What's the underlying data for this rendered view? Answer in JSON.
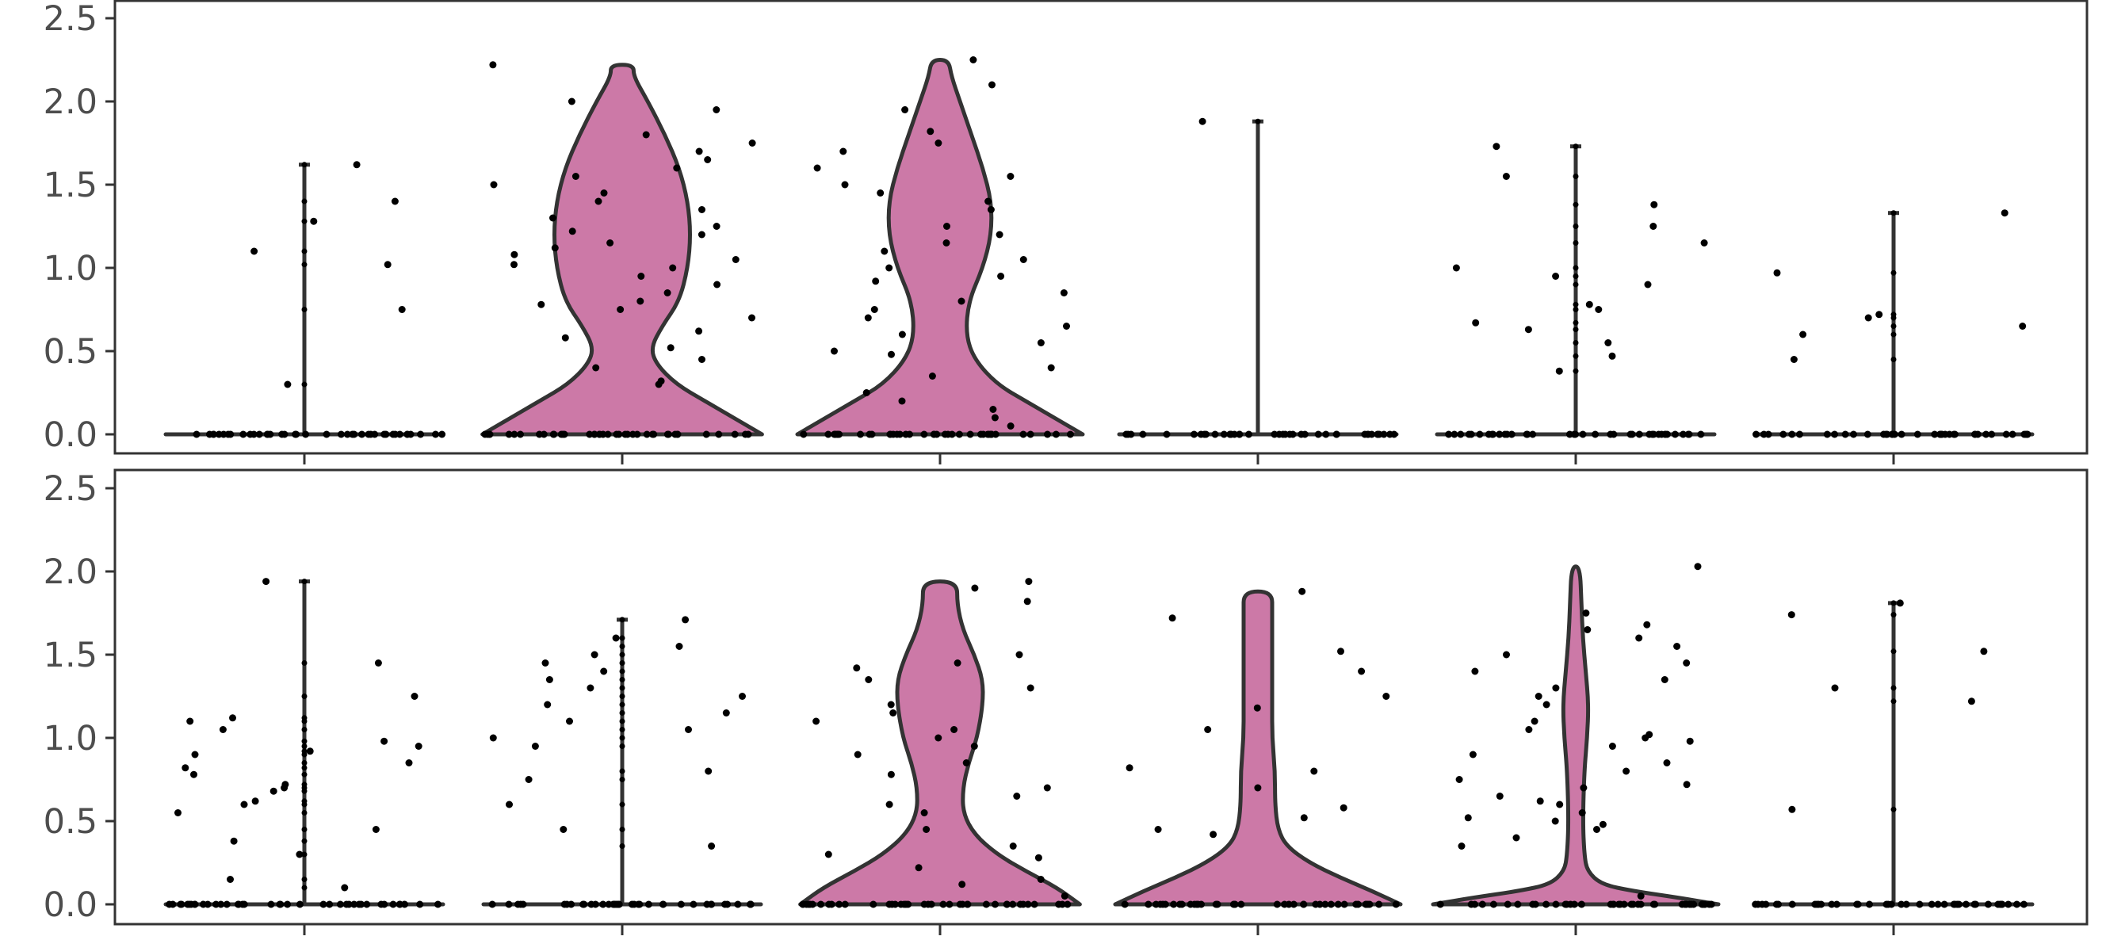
{
  "chart_data": {
    "type": "violin",
    "groups": 6,
    "ylim": [
      -0.1,
      2.6
    ],
    "yticks": [
      "0.0",
      "0.5",
      "1.0",
      "1.5",
      "2.0",
      "2.5"
    ],
    "ytick_values": [
      0,
      0.5,
      1.0,
      1.5,
      2.0,
      2.5
    ],
    "colors": {
      "violin_fill": "#cc79a7",
      "violin_stroke": "#333333",
      "point": "#000000",
      "frame": "#333333",
      "tick_label": "#4d4d4d"
    },
    "panels": [
      {
        "violins": [
          {
            "group": 1,
            "max": 1.62,
            "shape": "line",
            "points": [
              0.3,
              0.75,
              1.02,
              1.1,
              1.28,
              1.4,
              1.62
            ]
          },
          {
            "group": 2,
            "max": 2.22,
            "shape": "full",
            "profile": [
              [
                0,
                0.98
              ],
              [
                0.1,
                0.78
              ],
              [
                0.2,
                0.58
              ],
              [
                0.3,
                0.38
              ],
              [
                0.42,
                0.24
              ],
              [
                0.52,
                0.2
              ],
              [
                0.65,
                0.28
              ],
              [
                0.8,
                0.4
              ],
              [
                1.0,
                0.46
              ],
              [
                1.2,
                0.48
              ],
              [
                1.4,
                0.46
              ],
              [
                1.6,
                0.4
              ],
              [
                1.8,
                0.3
              ],
              [
                2.0,
                0.18
              ],
              [
                2.15,
                0.08
              ],
              [
                2.22,
                0.08
              ]
            ],
            "points": [
              0.3,
              0.32,
              0.4,
              0.45,
              0.52,
              0.58,
              0.62,
              0.7,
              0.75,
              0.78,
              0.8,
              0.85,
              0.9,
              0.95,
              1.0,
              1.02,
              1.05,
              1.08,
              1.12,
              1.15,
              1.2,
              1.22,
              1.25,
              1.3,
              1.35,
              1.4,
              1.45,
              1.5,
              1.55,
              1.6,
              1.65,
              1.7,
              1.75,
              1.8,
              1.95,
              2.0,
              2.22
            ]
          },
          {
            "group": 3,
            "max": 2.25,
            "shape": "full",
            "profile": [
              [
                0,
                1.0
              ],
              [
                0.1,
                0.8
              ],
              [
                0.2,
                0.6
              ],
              [
                0.3,
                0.4
              ],
              [
                0.45,
                0.24
              ],
              [
                0.6,
                0.18
              ],
              [
                0.8,
                0.2
              ],
              [
                1.0,
                0.3
              ],
              [
                1.2,
                0.36
              ],
              [
                1.4,
                0.36
              ],
              [
                1.6,
                0.3
              ],
              [
                1.8,
                0.22
              ],
              [
                2.0,
                0.14
              ],
              [
                2.15,
                0.08
              ],
              [
                2.25,
                0.06
              ]
            ],
            "points": [
              0.05,
              0.1,
              0.15,
              0.2,
              0.25,
              0.35,
              0.4,
              0.48,
              0.5,
              0.55,
              0.6,
              0.65,
              0.7,
              0.75,
              0.8,
              0.85,
              0.92,
              0.95,
              1.0,
              1.05,
              1.1,
              1.15,
              1.2,
              1.25,
              1.35,
              1.4,
              1.45,
              1.5,
              1.55,
              1.6,
              1.7,
              1.75,
              1.82,
              1.95,
              2.1,
              2.25
            ]
          },
          {
            "group": 4,
            "max": 1.88,
            "shape": "line",
            "points": [
              1.88
            ]
          },
          {
            "group": 5,
            "max": 1.73,
            "shape": "line",
            "points": [
              0.38,
              0.47,
              0.55,
              0.63,
              0.67,
              0.75,
              0.78,
              0.9,
              0.95,
              1.0,
              1.15,
              1.25,
              1.38,
              1.55,
              1.73
            ]
          },
          {
            "group": 6,
            "max": 1.33,
            "shape": "line",
            "points": [
              0.45,
              0.6,
              0.65,
              0.7,
              0.72,
              0.97,
              1.33
            ]
          }
        ]
      },
      {
        "violins": [
          {
            "group": 1,
            "max": 1.94,
            "shape": "line",
            "points": [
              0.1,
              0.15,
              0.3,
              0.38,
              0.45,
              0.55,
              0.6,
              0.62,
              0.68,
              0.7,
              0.72,
              0.78,
              0.82,
              0.85,
              0.9,
              0.92,
              0.95,
              0.98,
              1.05,
              1.1,
              1.12,
              1.25,
              1.45,
              1.94
            ]
          },
          {
            "group": 2,
            "max": 1.71,
            "shape": "line",
            "points": [
              0.35,
              0.45,
              0.6,
              0.75,
              0.8,
              0.95,
              1.0,
              1.05,
              1.1,
              1.15,
              1.2,
              1.25,
              1.3,
              1.35,
              1.4,
              1.45,
              1.5,
              1.55,
              1.6,
              1.71
            ]
          },
          {
            "group": 3,
            "max": 1.94,
            "shape": "full",
            "profile": [
              [
                0,
                0.98
              ],
              [
                0.1,
                0.82
              ],
              [
                0.2,
                0.6
              ],
              [
                0.3,
                0.4
              ],
              [
                0.42,
                0.24
              ],
              [
                0.55,
                0.16
              ],
              [
                0.7,
                0.16
              ],
              [
                0.85,
                0.2
              ],
              [
                1.0,
                0.26
              ],
              [
                1.2,
                0.3
              ],
              [
                1.35,
                0.3
              ],
              [
                1.5,
                0.24
              ],
              [
                1.65,
                0.16
              ],
              [
                1.8,
                0.12
              ],
              [
                1.94,
                0.12
              ]
            ],
            "points": [
              0.05,
              0.12,
              0.15,
              0.22,
              0.28,
              0.3,
              0.35,
              0.45,
              0.55,
              0.6,
              0.65,
              0.7,
              0.78,
              0.85,
              0.9,
              0.95,
              1.0,
              1.05,
              1.1,
              1.15,
              1.2,
              1.3,
              1.35,
              1.42,
              1.45,
              1.5,
              1.82,
              1.9,
              1.94
            ]
          },
          {
            "group": 4,
            "max": 1.88,
            "shape": "full",
            "profile": [
              [
                0,
                1.0
              ],
              [
                0.08,
                0.8
              ],
              [
                0.16,
                0.58
              ],
              [
                0.25,
                0.36
              ],
              [
                0.35,
                0.2
              ],
              [
                0.45,
                0.14
              ],
              [
                0.6,
                0.12
              ],
              [
                0.8,
                0.12
              ],
              [
                1.0,
                0.1
              ],
              [
                1.2,
                0.1
              ],
              [
                1.4,
                0.1
              ],
              [
                1.6,
                0.1
              ],
              [
                1.75,
                0.1
              ],
              [
                1.88,
                0.1
              ]
            ],
            "points": [
              0.42,
              0.45,
              0.52,
              0.58,
              0.7,
              0.8,
              0.82,
              1.05,
              1.18,
              1.25,
              1.4,
              1.52,
              1.72,
              1.88
            ]
          },
          {
            "group": 5,
            "max": 2.03,
            "shape": "full",
            "profile": [
              [
                0,
                1.0
              ],
              [
                0.04,
                0.72
              ],
              [
                0.08,
                0.4
              ],
              [
                0.12,
                0.18
              ],
              [
                0.2,
                0.08
              ],
              [
                0.3,
                0.06
              ],
              [
                0.5,
                0.05
              ],
              [
                0.8,
                0.06
              ],
              [
                1.0,
                0.08
              ],
              [
                1.2,
                0.09
              ],
              [
                1.4,
                0.07
              ],
              [
                1.6,
                0.05
              ],
              [
                1.8,
                0.04
              ],
              [
                2.03,
                0.03
              ]
            ],
            "points": [
              0.05,
              0.35,
              0.4,
              0.45,
              0.48,
              0.5,
              0.52,
              0.55,
              0.6,
              0.62,
              0.65,
              0.7,
              0.72,
              0.75,
              0.8,
              0.85,
              0.9,
              0.95,
              0.98,
              1.0,
              1.02,
              1.05,
              1.1,
              1.2,
              1.25,
              1.3,
              1.35,
              1.4,
              1.45,
              1.5,
              1.55,
              1.6,
              1.65,
              1.68,
              1.75,
              2.03
            ]
          },
          {
            "group": 6,
            "max": 1.81,
            "shape": "line",
            "points": [
              0.57,
              1.22,
              1.3,
              1.52,
              1.74,
              1.81
            ]
          }
        ]
      }
    ]
  }
}
